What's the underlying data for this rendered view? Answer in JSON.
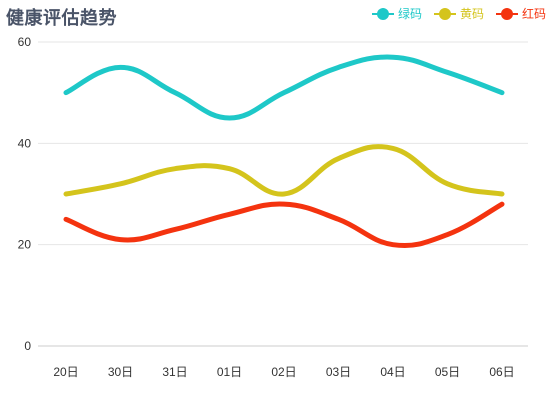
{
  "chart_data": {
    "type": "line",
    "title": "健康评估趋势",
    "categories": [
      "20日",
      "30日",
      "31日",
      "01日",
      "02日",
      "03日",
      "04日",
      "05日",
      "06日"
    ],
    "ylim": [
      0,
      60
    ],
    "yticks": [
      0,
      20,
      40,
      60
    ],
    "grid": true,
    "smooth": true,
    "legend_position": "top-right",
    "series": [
      {
        "name": "绿码",
        "color": "#1ec8c8",
        "values": [
          50,
          55,
          50,
          45,
          50,
          55,
          57,
          54,
          50
        ]
      },
      {
        "name": "黄码",
        "color": "#d4c41c",
        "values": [
          30,
          32,
          35,
          35,
          30,
          37,
          39,
          32,
          30
        ]
      },
      {
        "name": "红码",
        "color": "#f4330f",
        "values": [
          25,
          21,
          23,
          26,
          28,
          25,
          20,
          22,
          28
        ]
      }
    ]
  }
}
